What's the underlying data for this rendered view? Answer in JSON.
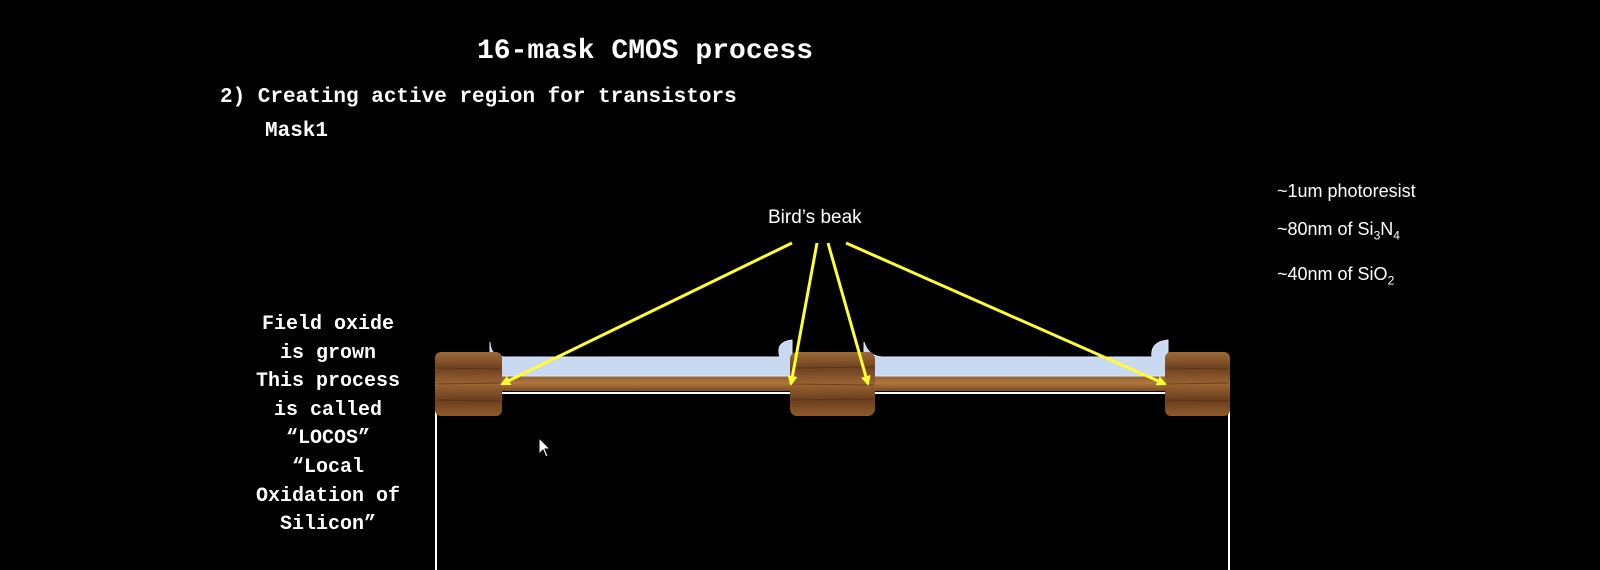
{
  "title": "16-mask CMOS process",
  "step": "2) Creating active region for transistors",
  "mask": "Mask1",
  "layers": [
    {
      "text": "~1um photoresist",
      "sub": "",
      "rest": ""
    },
    {
      "text": "~80nm of Si",
      "sub": "3",
      "mid": "N",
      "sub2": "4"
    },
    {
      "text": "~40nm of SiO",
      "sub": "2"
    }
  ],
  "beak_label": "Bird’s beak",
  "locos_lines": [
    "Field oxide",
    "is grown",
    "This process",
    "is called",
    "“LOCOS”",
    "“Local",
    "Oxidation of",
    "Silicon”"
  ],
  "colors": {
    "background": "#000000",
    "arrow": "#ffff33",
    "nitride": "#c8d8f0",
    "oxide_wood": "#8b5a2b",
    "substrate_outline": "#ffffff"
  }
}
